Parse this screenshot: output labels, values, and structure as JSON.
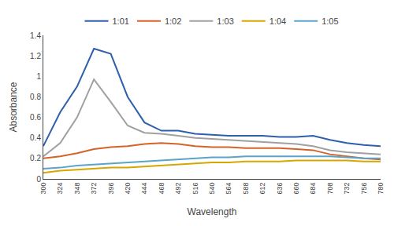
{
  "chart_data": {
    "type": "line",
    "x": [
      300,
      324,
      348,
      372,
      396,
      420,
      444,
      468,
      492,
      516,
      540,
      564,
      588,
      612,
      636,
      660,
      684,
      708,
      732,
      756,
      780
    ],
    "series": [
      {
        "name": "1:01",
        "color": "#2E5FAC",
        "values": [
          0.32,
          0.65,
          0.9,
          1.27,
          1.22,
          0.8,
          0.55,
          0.47,
          0.47,
          0.44,
          0.43,
          0.42,
          0.42,
          0.42,
          0.41,
          0.41,
          0.42,
          0.38,
          0.35,
          0.33,
          0.32
        ]
      },
      {
        "name": "1:02",
        "color": "#D4622A",
        "values": [
          0.2,
          0.22,
          0.25,
          0.29,
          0.31,
          0.32,
          0.34,
          0.35,
          0.34,
          0.32,
          0.31,
          0.31,
          0.3,
          0.3,
          0.3,
          0.29,
          0.28,
          0.24,
          0.22,
          0.2,
          0.19
        ]
      },
      {
        "name": "1:03",
        "color": "#A0A0A0",
        "values": [
          0.22,
          0.35,
          0.6,
          0.97,
          0.75,
          0.52,
          0.45,
          0.44,
          0.42,
          0.4,
          0.39,
          0.38,
          0.37,
          0.36,
          0.35,
          0.34,
          0.32,
          0.28,
          0.26,
          0.25,
          0.24
        ]
      },
      {
        "name": "1:04",
        "color": "#D4A800",
        "values": [
          0.06,
          0.08,
          0.09,
          0.1,
          0.11,
          0.11,
          0.12,
          0.13,
          0.14,
          0.15,
          0.16,
          0.16,
          0.17,
          0.17,
          0.17,
          0.18,
          0.18,
          0.18,
          0.18,
          0.17,
          0.17
        ]
      },
      {
        "name": "1:05",
        "color": "#5BA3C9",
        "values": [
          0.1,
          0.11,
          0.13,
          0.14,
          0.15,
          0.16,
          0.17,
          0.18,
          0.19,
          0.2,
          0.21,
          0.21,
          0.22,
          0.22,
          0.22,
          0.22,
          0.22,
          0.22,
          0.21,
          0.2,
          0.2
        ]
      }
    ],
    "xlabel": "Wavelength",
    "ylabel": "Absorbance",
    "xlim": [
      300,
      780
    ],
    "xticks": [
      300,
      324,
      348,
      372,
      396,
      420,
      444,
      468,
      492,
      516,
      540,
      564,
      588,
      612,
      636,
      660,
      684,
      708,
      732,
      756,
      780
    ],
    "ylim": [
      0,
      1.4
    ],
    "yticks": [
      0,
      0.2,
      0.4,
      0.6,
      0.8,
      1,
      1.2,
      1.4
    ],
    "grid": false,
    "legend": "top"
  }
}
